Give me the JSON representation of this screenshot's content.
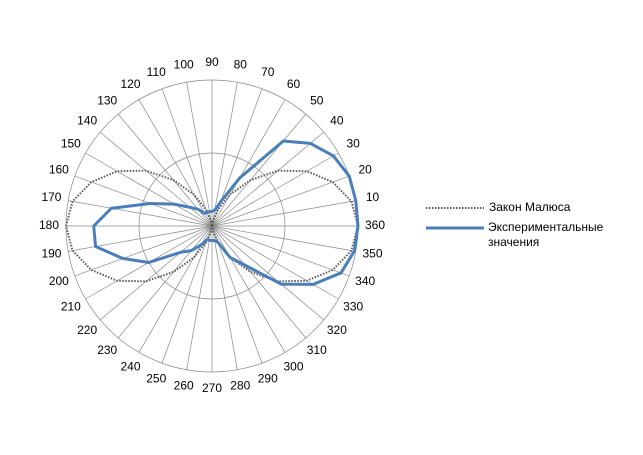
{
  "chart_data": {
    "type": "radar",
    "categories": [
      "360",
      "10",
      "20",
      "30",
      "40",
      "50",
      "60",
      "70",
      "80",
      "90",
      "100",
      "110",
      "120",
      "130",
      "140",
      "150",
      "160",
      "170",
      "180",
      "190",
      "200",
      "210",
      "220",
      "230",
      "240",
      "250",
      "260",
      "270",
      "280",
      "290",
      "300",
      "310",
      "320",
      "330",
      "340",
      "350"
    ],
    "series": [
      {
        "name": "Закон Малюса",
        "color": "#595959",
        "dash": "dotted",
        "values": [
          1,
          0.97,
          0.88,
          0.75,
          0.59,
          0.41,
          0.25,
          0.12,
          0.03,
          0,
          0.03,
          0.12,
          0.25,
          0.41,
          0.59,
          0.75,
          0.88,
          0.97,
          1,
          0.97,
          0.88,
          0.75,
          0.59,
          0.41,
          0.25,
          0.12,
          0.03,
          0,
          0.03,
          0.12,
          0.25,
          0.41,
          0.59,
          0.75,
          0.88,
          0.97
        ]
      },
      {
        "name": "Экспериментальные значения",
        "color": "#4a7ebb",
        "dash": "solid",
        "values": [
          1,
          1,
          1,
          0.96,
          0.88,
          0.76,
          0.38,
          0.18,
          0.11,
          0.1,
          0.1,
          0.1,
          0.1,
          0.15,
          0.2,
          0.3,
          0.45,
          0.7,
          0.81,
          0.81,
          0.65,
          0.5,
          0.28,
          0.22,
          0.15,
          0.1,
          0.1,
          0.1,
          0.1,
          0.12,
          0.25,
          0.35,
          0.62,
          0.8,
          0.94,
          0.99
        ]
      }
    ],
    "ylim": [
      0,
      1
    ],
    "yticks": [
      0,
      0.5,
      1
    ],
    "grid": true,
    "legend": "right"
  }
}
